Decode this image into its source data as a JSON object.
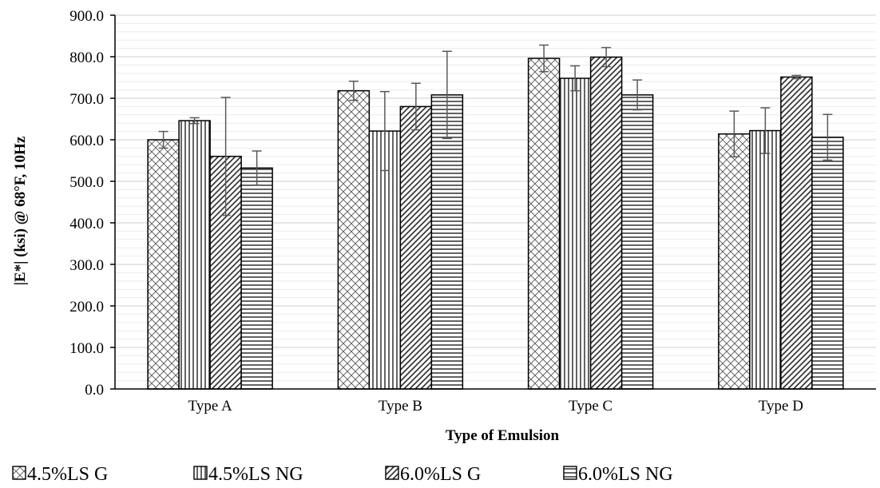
{
  "chart_data": {
    "type": "bar",
    "title": "",
    "xlabel": "Type of Emulsion",
    "ylabel": "|E*| (ksi) @ 68°F, 10Hz",
    "ylim": [
      0,
      900
    ],
    "y_ticks": [
      "0.0",
      "100.0",
      "200.0",
      "300.0",
      "400.0",
      "500.0",
      "600.0",
      "700.0",
      "800.0",
      "900.0"
    ],
    "categories": [
      "Type A",
      "Type B",
      "Type C",
      "Type D"
    ],
    "grid": true,
    "legend_position": "bottom",
    "series": [
      {
        "name": "4.5%LS G",
        "pattern": "crosshatch",
        "values": [
          600,
          718,
          796,
          614
        ],
        "error": [
          20,
          23,
          32,
          55
        ]
      },
      {
        "name": "4.5%LS NG",
        "pattern": "vertical-lines",
        "values": [
          646,
          621,
          748,
          622
        ],
        "error": [
          7,
          95,
          30,
          55
        ]
      },
      {
        "name": "6.0%LS G",
        "pattern": "diagonal-lines",
        "values": [
          560,
          680,
          799,
          751
        ],
        "error": [
          142,
          56,
          23,
          4
        ]
      },
      {
        "name": "6.0%LS NG",
        "pattern": "horizontal-lines",
        "values": [
          532,
          708,
          708,
          606
        ],
        "error": [
          41,
          105,
          36,
          55
        ]
      }
    ]
  }
}
